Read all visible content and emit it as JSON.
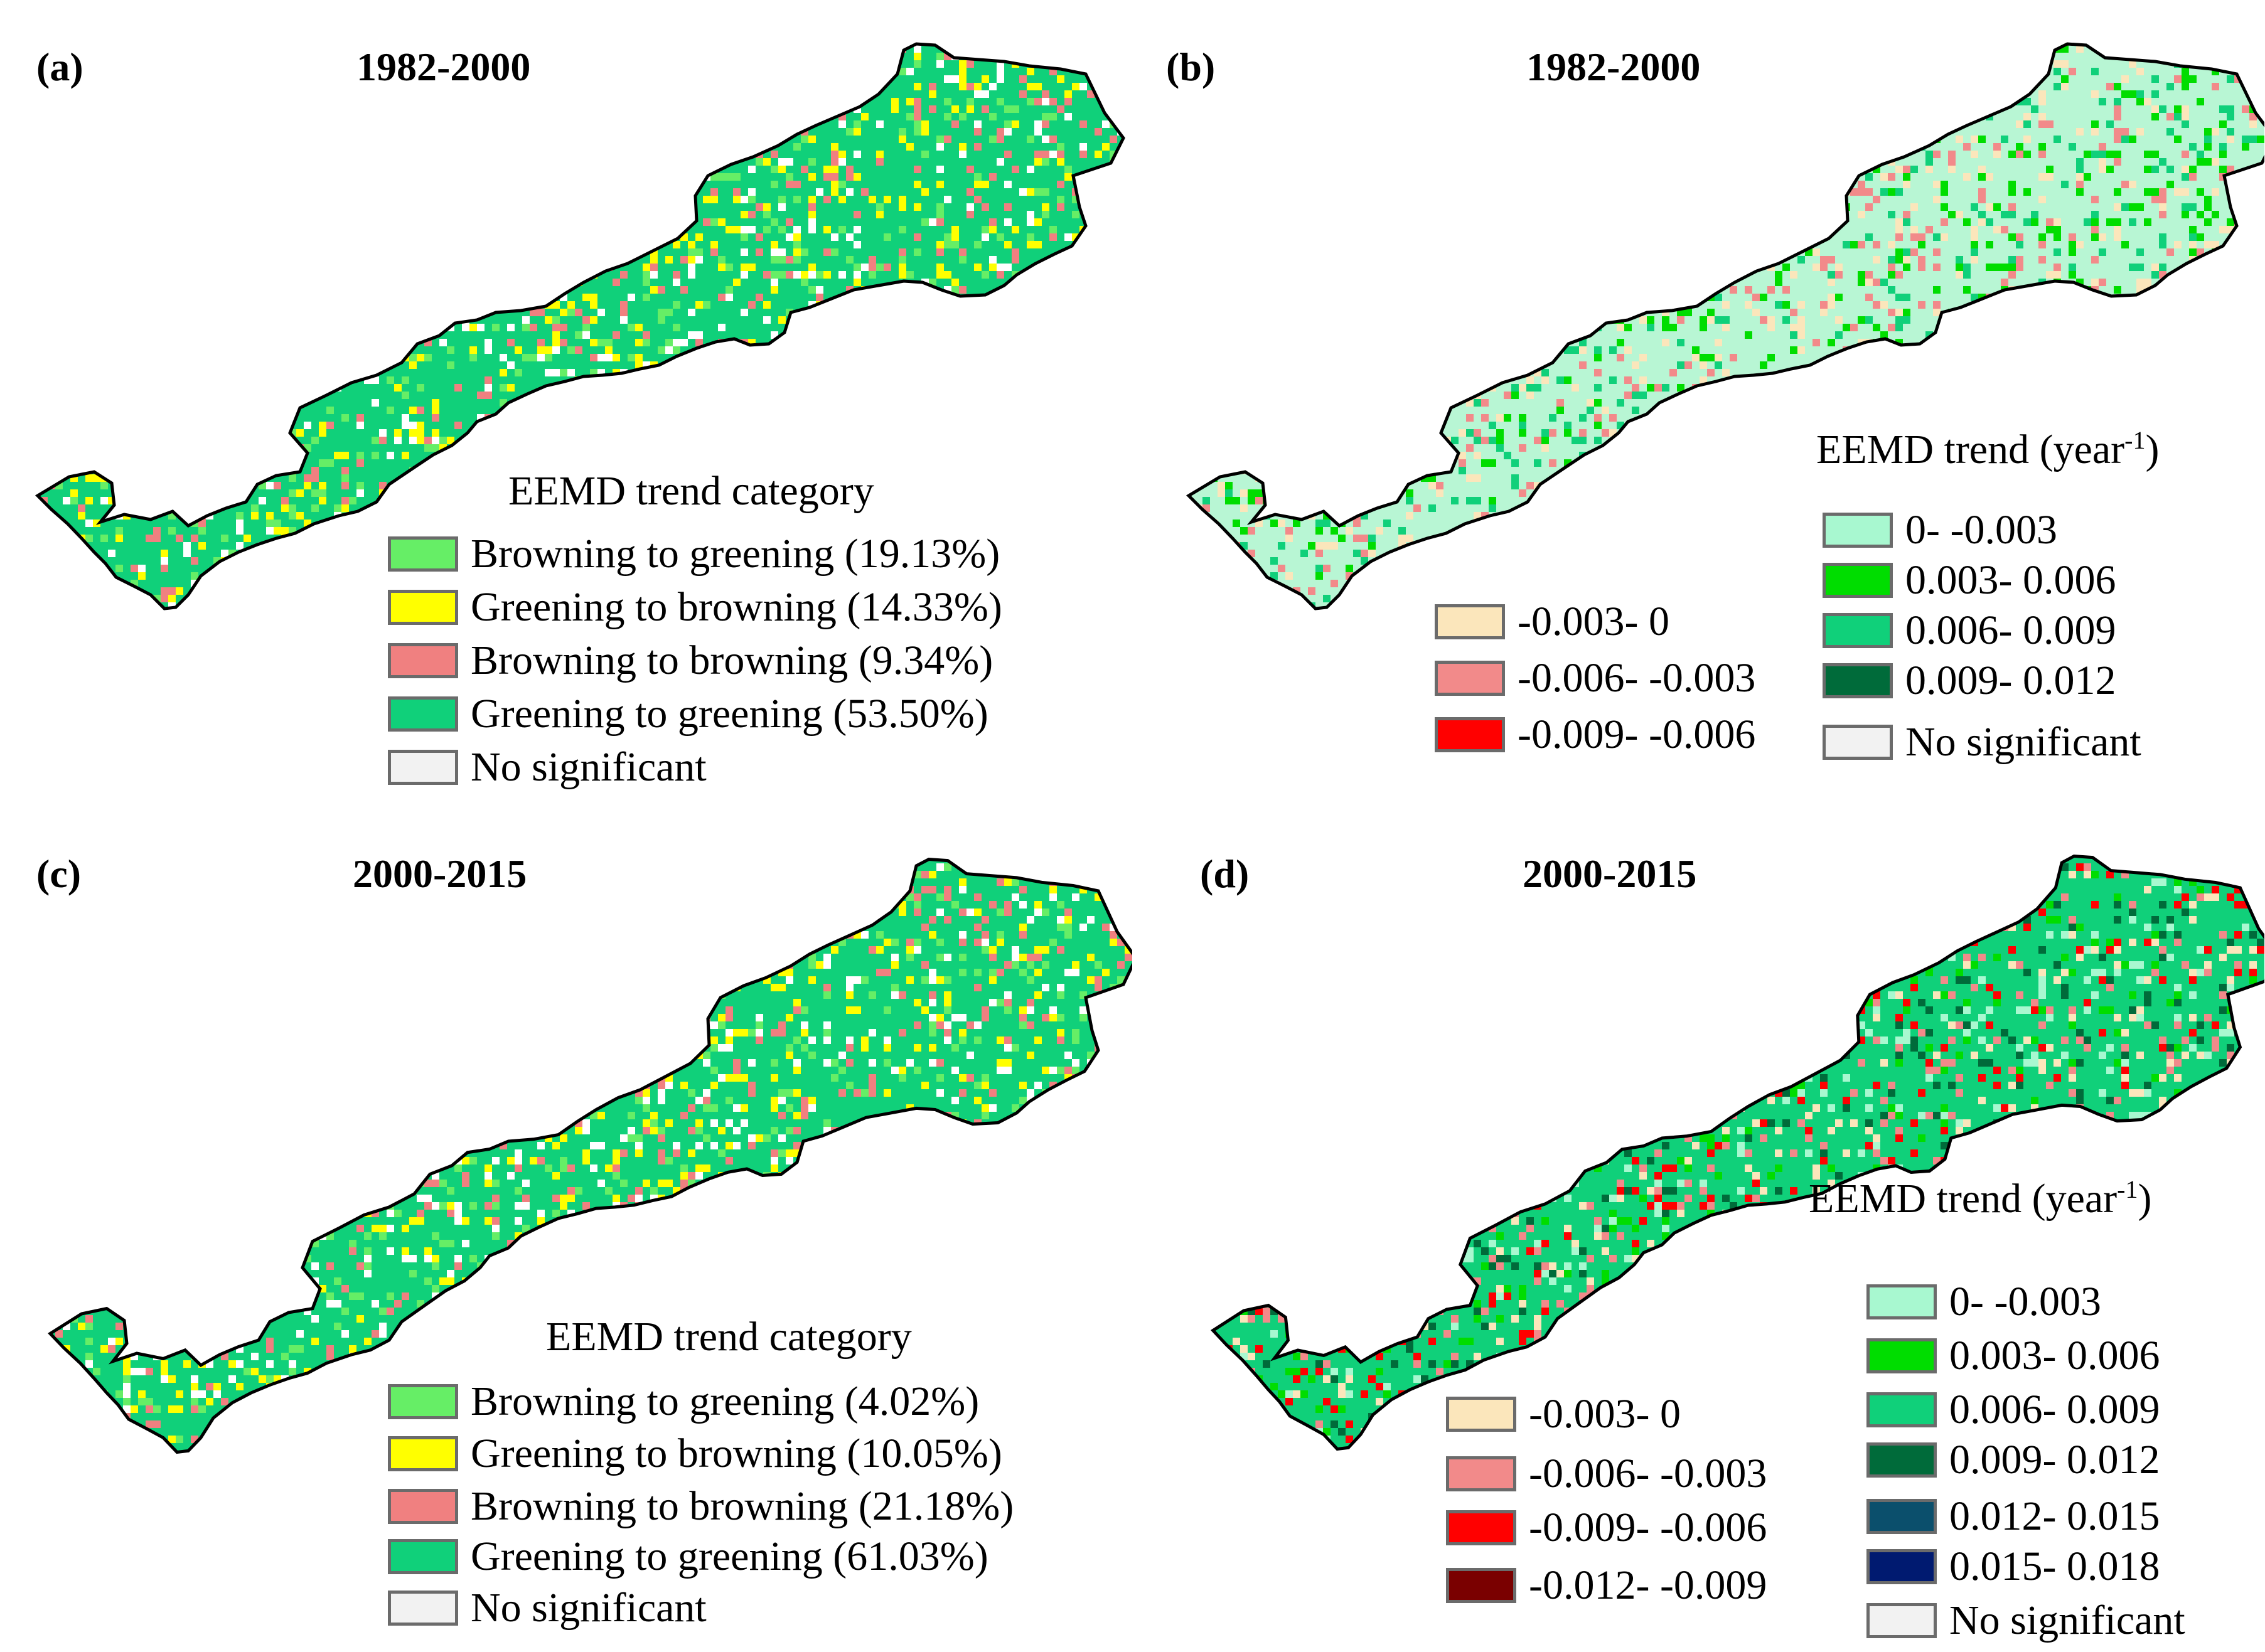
{
  "panels": {
    "a": {
      "label": "(a)",
      "title": "1982-2000",
      "legend_title": "EEMD trend category",
      "items": [
        {
          "label": "Browning to greening (19.13%)",
          "color": "#66ee66"
        },
        {
          "label": "Greening to browning (14.33%)",
          "color": "#ffff00"
        },
        {
          "label": "Browning to browning (9.34%)",
          "color": "#f08080"
        },
        {
          "label": "Greening to greening (53.50%)",
          "color": "#10d07a"
        },
        {
          "label": "No significant",
          "color": "#f2f2f2"
        }
      ],
      "map_fill": {
        "base": "#10d07a",
        "speckles": [
          "#ffff00",
          "#66ee66",
          "#f08080",
          "#ffffff"
        ]
      }
    },
    "b": {
      "label": "(b)",
      "title": "1982-2000",
      "legend_title": "EEMD trend (year",
      "legend_title_sup": "-1",
      "legend_title_end": ")",
      "items_left": [
        {
          "label": "-0.003- 0",
          "color": "#fbe6bb"
        },
        {
          "label": "-0.006- -0.003",
          "color": "#f28a8a"
        },
        {
          "label": "-0.009- -0.006",
          "color": "#ff0000"
        }
      ],
      "items_right": [
        {
          "label": "0- -0.003",
          "color": "#a8f8d0"
        },
        {
          "label": "0.003- 0.006",
          "color": "#00dd00"
        },
        {
          "label": "0.006- 0.009",
          "color": "#10d07a"
        },
        {
          "label": "0.009- 0.012",
          "color": "#006b3a"
        },
        {
          "label": "No significant",
          "color": "#f2f2f2"
        }
      ],
      "map_fill": {
        "base": "#b8f6d4",
        "speckles": [
          "#fbe6bb",
          "#00dd00",
          "#10d07a",
          "#f28a8a"
        ]
      }
    },
    "c": {
      "label": "(c)",
      "title": "2000-2015",
      "legend_title": "EEMD trend category",
      "items": [
        {
          "label": "Browning to greening (4.02%)",
          "color": "#66ee66"
        },
        {
          "label": "Greening to browning (10.05%)",
          "color": "#ffff00"
        },
        {
          "label": "Browning to browning (21.18%)",
          "color": "#f08080"
        },
        {
          "label": "Greening to greening (61.03%)",
          "color": "#10d07a"
        },
        {
          "label": "No significant",
          "color": "#f2f2f2"
        }
      ],
      "map_fill": {
        "base": "#10d07a",
        "speckles": [
          "#f08080",
          "#ffffff",
          "#ffff00",
          "#66ee66"
        ]
      }
    },
    "d": {
      "label": "(d)",
      "title": "2000-2015",
      "legend_title": "EEMD trend (year",
      "legend_title_sup": "-1",
      "legend_title_end": ")",
      "items_left": [
        {
          "label": "-0.003- 0",
          "color": "#fbe6bb"
        },
        {
          "label": "-0.006- -0.003",
          "color": "#f28a8a"
        },
        {
          "label": "-0.009- -0.006",
          "color": "#ff0000"
        },
        {
          "label": "-0.012- -0.009",
          "color": "#7a0000"
        }
      ],
      "items_right": [
        {
          "label": "0- -0.003",
          "color": "#a8f8d0"
        },
        {
          "label": "0.003- 0.006",
          "color": "#00dd00"
        },
        {
          "label": "0.006- 0.009",
          "color": "#10d07a"
        },
        {
          "label": "0.009- 0.012",
          "color": "#006b3a"
        },
        {
          "label": "0.012- 0.015",
          "color": "#0b4f6c"
        },
        {
          "label": "0.015- 0.018",
          "color": "#001a70"
        },
        {
          "label": "No significant",
          "color": "#f2f2f2"
        }
      ],
      "map_fill": {
        "base": "#10d07a",
        "speckles": [
          "#00dd00",
          "#fbe6bb",
          "#f28a8a",
          "#ff0000",
          "#a8f8d0",
          "#006b3a"
        ]
      }
    }
  }
}
